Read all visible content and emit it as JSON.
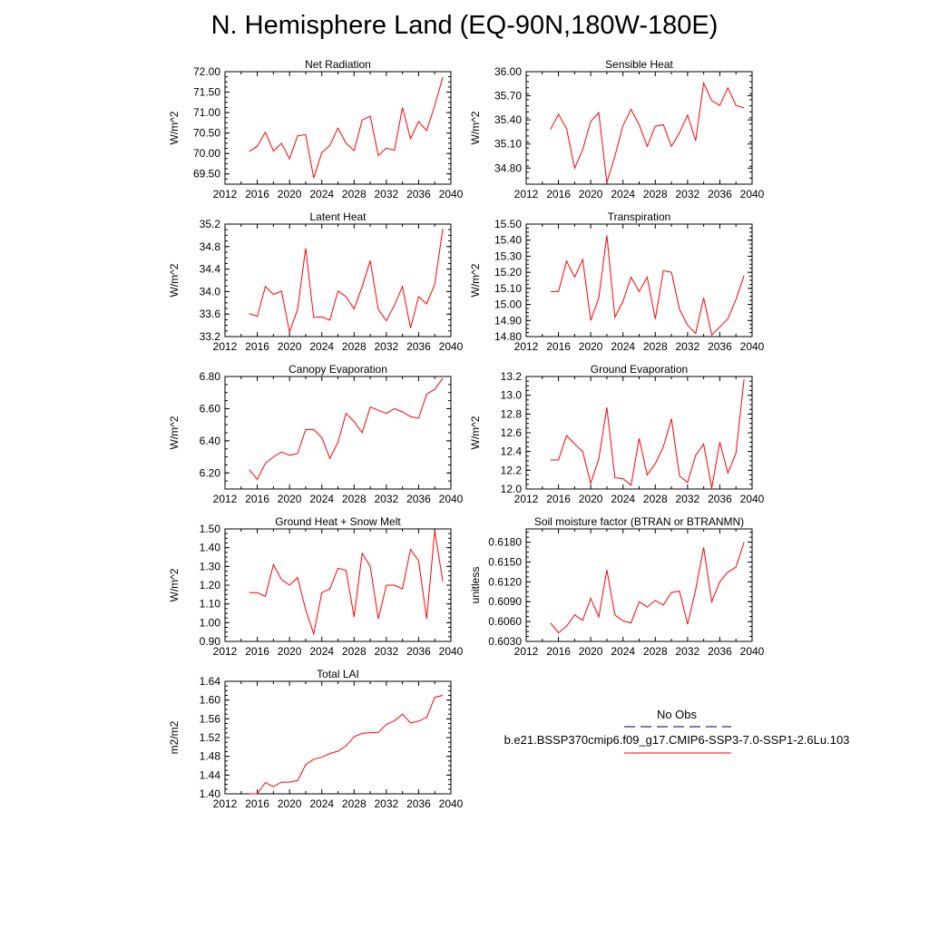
{
  "page": {
    "title": "N. Hemisphere Land (EQ-90N,180W-180E)"
  },
  "legend": {
    "items": [
      {
        "label": "No Obs",
        "color": "#2b2b8c",
        "style": "dashed"
      },
      {
        "label": "b.e21.BSSP370cmip6.f09_g17.CMIP6-SSP3-7.0-SSP1-2.6Lu.103",
        "color": "#ff0000",
        "style": "solid"
      }
    ]
  },
  "chart_data": [
    {
      "type": "line",
      "title": "Net Radiation",
      "ylabel": "W/m^2",
      "xlim": [
        2012,
        2040
      ],
      "ylim": [
        69.25,
        72.0
      ],
      "xticks": [
        2012,
        2016,
        2020,
        2024,
        2028,
        2032,
        2036,
        2040
      ],
      "yticks": [
        "69.50",
        "70.00",
        "70.50",
        "71.00",
        "71.50",
        "72.00"
      ],
      "series": [
        {
          "color": "#ff0000",
          "x": [
            2015,
            2016,
            2017,
            2018,
            2019,
            2020,
            2021,
            2022,
            2023,
            2024,
            2025,
            2026,
            2027,
            2028,
            2029,
            2030,
            2031,
            2032,
            2033,
            2034,
            2035,
            2036,
            2037,
            2038,
            2039
          ],
          "y": [
            70.05,
            70.18,
            70.52,
            70.06,
            70.25,
            69.87,
            70.43,
            70.46,
            69.4,
            70.02,
            70.2,
            70.62,
            70.25,
            70.07,
            70.82,
            70.91,
            69.95,
            70.13,
            70.08,
            71.12,
            70.36,
            70.78,
            70.56,
            71.17,
            71.87
          ]
        }
      ]
    },
    {
      "type": "line",
      "title": "Sensible Heat",
      "ylabel": "W/m^2",
      "xlim": [
        2012,
        2040
      ],
      "ylim": [
        34.6,
        36.0
      ],
      "xticks": [
        2012,
        2016,
        2020,
        2024,
        2028,
        2032,
        2036,
        2040
      ],
      "yticks": [
        "34.80",
        "35.10",
        "35.40",
        "35.70",
        "36.00"
      ],
      "series": [
        {
          "color": "#ff0000",
          "x": [
            2015,
            2016,
            2017,
            2018,
            2019,
            2020,
            2021,
            2022,
            2023,
            2024,
            2025,
            2026,
            2027,
            2028,
            2029,
            2030,
            2031,
            2032,
            2033,
            2034,
            2035,
            2036,
            2037,
            2038,
            2039
          ],
          "y": [
            35.28,
            35.47,
            35.29,
            34.8,
            35.03,
            35.38,
            35.49,
            34.62,
            34.95,
            35.33,
            35.53,
            35.34,
            35.07,
            35.32,
            35.34,
            35.07,
            35.24,
            35.46,
            35.14,
            35.86,
            35.64,
            35.58,
            35.8,
            35.58,
            35.55
          ]
        }
      ]
    },
    {
      "type": "line",
      "title": "Latent Heat",
      "ylabel": "W/m^2",
      "xlim": [
        2012,
        2040
      ],
      "ylim": [
        33.2,
        35.2
      ],
      "xticks": [
        2012,
        2016,
        2020,
        2024,
        2028,
        2032,
        2036,
        2040
      ],
      "yticks": [
        "33.2",
        "33.6",
        "34.0",
        "34.4",
        "34.8",
        "35.2"
      ],
      "series": [
        {
          "color": "#ff0000",
          "x": [
            2015,
            2016,
            2017,
            2018,
            2019,
            2020,
            2021,
            2022,
            2023,
            2024,
            2025,
            2026,
            2027,
            2028,
            2029,
            2030,
            2031,
            2032,
            2033,
            2034,
            2035,
            2036,
            2037,
            2038,
            2039
          ],
          "y": [
            33.61,
            33.56,
            34.09,
            33.95,
            34.01,
            33.28,
            33.68,
            34.77,
            33.54,
            33.55,
            33.49,
            34.01,
            33.91,
            33.69,
            34.09,
            34.55,
            33.68,
            33.48,
            33.76,
            34.09,
            33.35,
            33.91,
            33.78,
            34.13,
            35.12
          ]
        }
      ]
    },
    {
      "type": "line",
      "title": "Transpiration",
      "ylabel": "W/m^2",
      "xlim": [
        2012,
        2040
      ],
      "ylim": [
        14.8,
        15.5
      ],
      "xticks": [
        2012,
        2016,
        2020,
        2024,
        2028,
        2032,
        2036,
        2040
      ],
      "yticks": [
        "14.80",
        "14.90",
        "15.00",
        "15.10",
        "15.20",
        "15.30",
        "15.40",
        "15.50"
      ],
      "series": [
        {
          "color": "#ff0000",
          "x": [
            2015,
            2016,
            2017,
            2018,
            2019,
            2020,
            2021,
            2022,
            2023,
            2024,
            2025,
            2026,
            2027,
            2028,
            2029,
            2030,
            2031,
            2032,
            2033,
            2034,
            2035,
            2036,
            2037,
            2038,
            2039
          ],
          "y": [
            15.08,
            15.08,
            15.27,
            15.17,
            15.28,
            14.9,
            15.04,
            15.43,
            14.92,
            15.02,
            15.17,
            15.08,
            15.17,
            14.91,
            15.21,
            15.2,
            14.97,
            14.87,
            14.82,
            15.04,
            14.81,
            14.86,
            14.91,
            15.03,
            15.18
          ]
        }
      ]
    },
    {
      "type": "line",
      "title": "Canopy Evaporation",
      "ylabel": "W/m^2",
      "xlim": [
        2012,
        2040
      ],
      "ylim": [
        6.1,
        6.8
      ],
      "xticks": [
        2012,
        2016,
        2020,
        2024,
        2028,
        2032,
        2036,
        2040
      ],
      "yticks": [
        "6.20",
        "6.40",
        "6.60",
        "6.80"
      ],
      "series": [
        {
          "color": "#ff0000",
          "x": [
            2015,
            2016,
            2017,
            2018,
            2019,
            2020,
            2021,
            2022,
            2023,
            2024,
            2025,
            2026,
            2027,
            2028,
            2029,
            2030,
            2031,
            2032,
            2033,
            2034,
            2035,
            2036,
            2037,
            2038,
            2039
          ],
          "y": [
            6.22,
            6.16,
            6.26,
            6.3,
            6.33,
            6.31,
            6.32,
            6.47,
            6.47,
            6.42,
            6.29,
            6.39,
            6.57,
            6.52,
            6.45,
            6.61,
            6.59,
            6.57,
            6.6,
            6.58,
            6.55,
            6.54,
            6.69,
            6.72,
            6.79
          ]
        }
      ]
    },
    {
      "type": "line",
      "title": "Ground Evaporation",
      "ylabel": "W/m^2",
      "xlim": [
        2012,
        2040
      ],
      "ylim": [
        12.0,
        13.2
      ],
      "xticks": [
        2012,
        2016,
        2020,
        2024,
        2028,
        2032,
        2036,
        2040
      ],
      "yticks": [
        "12.0",
        "12.2",
        "12.4",
        "12.6",
        "12.8",
        "13.0",
        "13.2"
      ],
      "series": [
        {
          "color": "#ff0000",
          "x": [
            2015,
            2016,
            2017,
            2018,
            2019,
            2020,
            2021,
            2022,
            2023,
            2024,
            2025,
            2026,
            2027,
            2028,
            2029,
            2030,
            2031,
            2032,
            2033,
            2034,
            2035,
            2036,
            2037,
            2038,
            2039
          ],
          "y": [
            12.31,
            12.31,
            12.57,
            12.48,
            12.4,
            12.06,
            12.32,
            12.87,
            12.12,
            12.11,
            12.04,
            12.54,
            12.15,
            12.27,
            12.45,
            12.75,
            12.14,
            12.07,
            12.36,
            12.48,
            12.01,
            12.5,
            12.17,
            12.38,
            13.17
          ]
        }
      ]
    },
    {
      "type": "line",
      "title": "Ground Heat + Snow Melt",
      "ylabel": "W/m^2",
      "xlim": [
        2012,
        2040
      ],
      "ylim": [
        0.9,
        1.5
      ],
      "xticks": [
        2012,
        2016,
        2020,
        2024,
        2028,
        2032,
        2036,
        2040
      ],
      "yticks": [
        "0.90",
        "1.00",
        "1.10",
        "1.20",
        "1.30",
        "1.40",
        "1.50"
      ],
      "series": [
        {
          "color": "#ff0000",
          "x": [
            2015,
            2016,
            2017,
            2018,
            2019,
            2020,
            2021,
            2022,
            2023,
            2024,
            2025,
            2026,
            2027,
            2028,
            2029,
            2030,
            2031,
            2032,
            2033,
            2034,
            2035,
            2036,
            2037,
            2038,
            2039
          ],
          "y": [
            1.16,
            1.16,
            1.14,
            1.31,
            1.23,
            1.2,
            1.24,
            1.07,
            0.94,
            1.16,
            1.18,
            1.29,
            1.28,
            1.03,
            1.37,
            1.3,
            1.02,
            1.2,
            1.2,
            1.18,
            1.39,
            1.33,
            1.02,
            1.49,
            1.22
          ]
        }
      ]
    },
    {
      "type": "line",
      "title": "Soil moisture factor (BTRAN or BTRANMN)",
      "ylabel": "unitless",
      "xlim": [
        2012,
        2040
      ],
      "ylim": [
        0.603,
        0.62
      ],
      "xticks": [
        2012,
        2016,
        2020,
        2024,
        2028,
        2032,
        2036,
        2040
      ],
      "yticks": [
        "0.6030",
        "0.6060",
        "0.6090",
        "0.6120",
        "0.6150",
        "0.6180"
      ],
      "series": [
        {
          "color": "#ff0000",
          "x": [
            2015,
            2016,
            2017,
            2018,
            2019,
            2020,
            2021,
            2022,
            2023,
            2024,
            2025,
            2026,
            2027,
            2028,
            2029,
            2030,
            2031,
            2032,
            2033,
            2034,
            2035,
            2036,
            2037,
            2038,
            2039
          ],
          "y": [
            0.6058,
            0.6043,
            0.6053,
            0.607,
            0.6062,
            0.6095,
            0.6067,
            0.6138,
            0.607,
            0.6061,
            0.6058,
            0.609,
            0.6082,
            0.6092,
            0.6085,
            0.6104,
            0.6106,
            0.6056,
            0.6108,
            0.6172,
            0.609,
            0.612,
            0.6135,
            0.6142,
            0.618
          ]
        }
      ]
    },
    {
      "type": "line",
      "title": "Total LAI",
      "ylabel": "m2/m2",
      "xlim": [
        2012,
        2040
      ],
      "ylim": [
        1.4,
        1.64
      ],
      "xticks": [
        2012,
        2016,
        2020,
        2024,
        2028,
        2032,
        2036,
        2040
      ],
      "yticks": [
        "1.40",
        "1.44",
        "1.48",
        "1.52",
        "1.56",
        "1.60",
        "1.64"
      ],
      "series": [
        {
          "color": "#ff0000",
          "x": [
            2015,
            2016,
            2017,
            2018,
            2019,
            2020,
            2021,
            2022,
            2023,
            2024,
            2025,
            2026,
            2027,
            2028,
            2029,
            2030,
            2031,
            2032,
            2033,
            2034,
            2035,
            2036,
            2037,
            2038,
            2039
          ],
          "y": [
            1.4,
            1.4,
            1.424,
            1.415,
            1.425,
            1.425,
            1.428,
            1.462,
            1.474,
            1.478,
            1.486,
            1.491,
            1.502,
            1.522,
            1.529,
            1.53,
            1.531,
            1.548,
            1.556,
            1.57,
            1.551,
            1.555,
            1.563,
            1.606,
            1.61
          ]
        }
      ]
    }
  ]
}
